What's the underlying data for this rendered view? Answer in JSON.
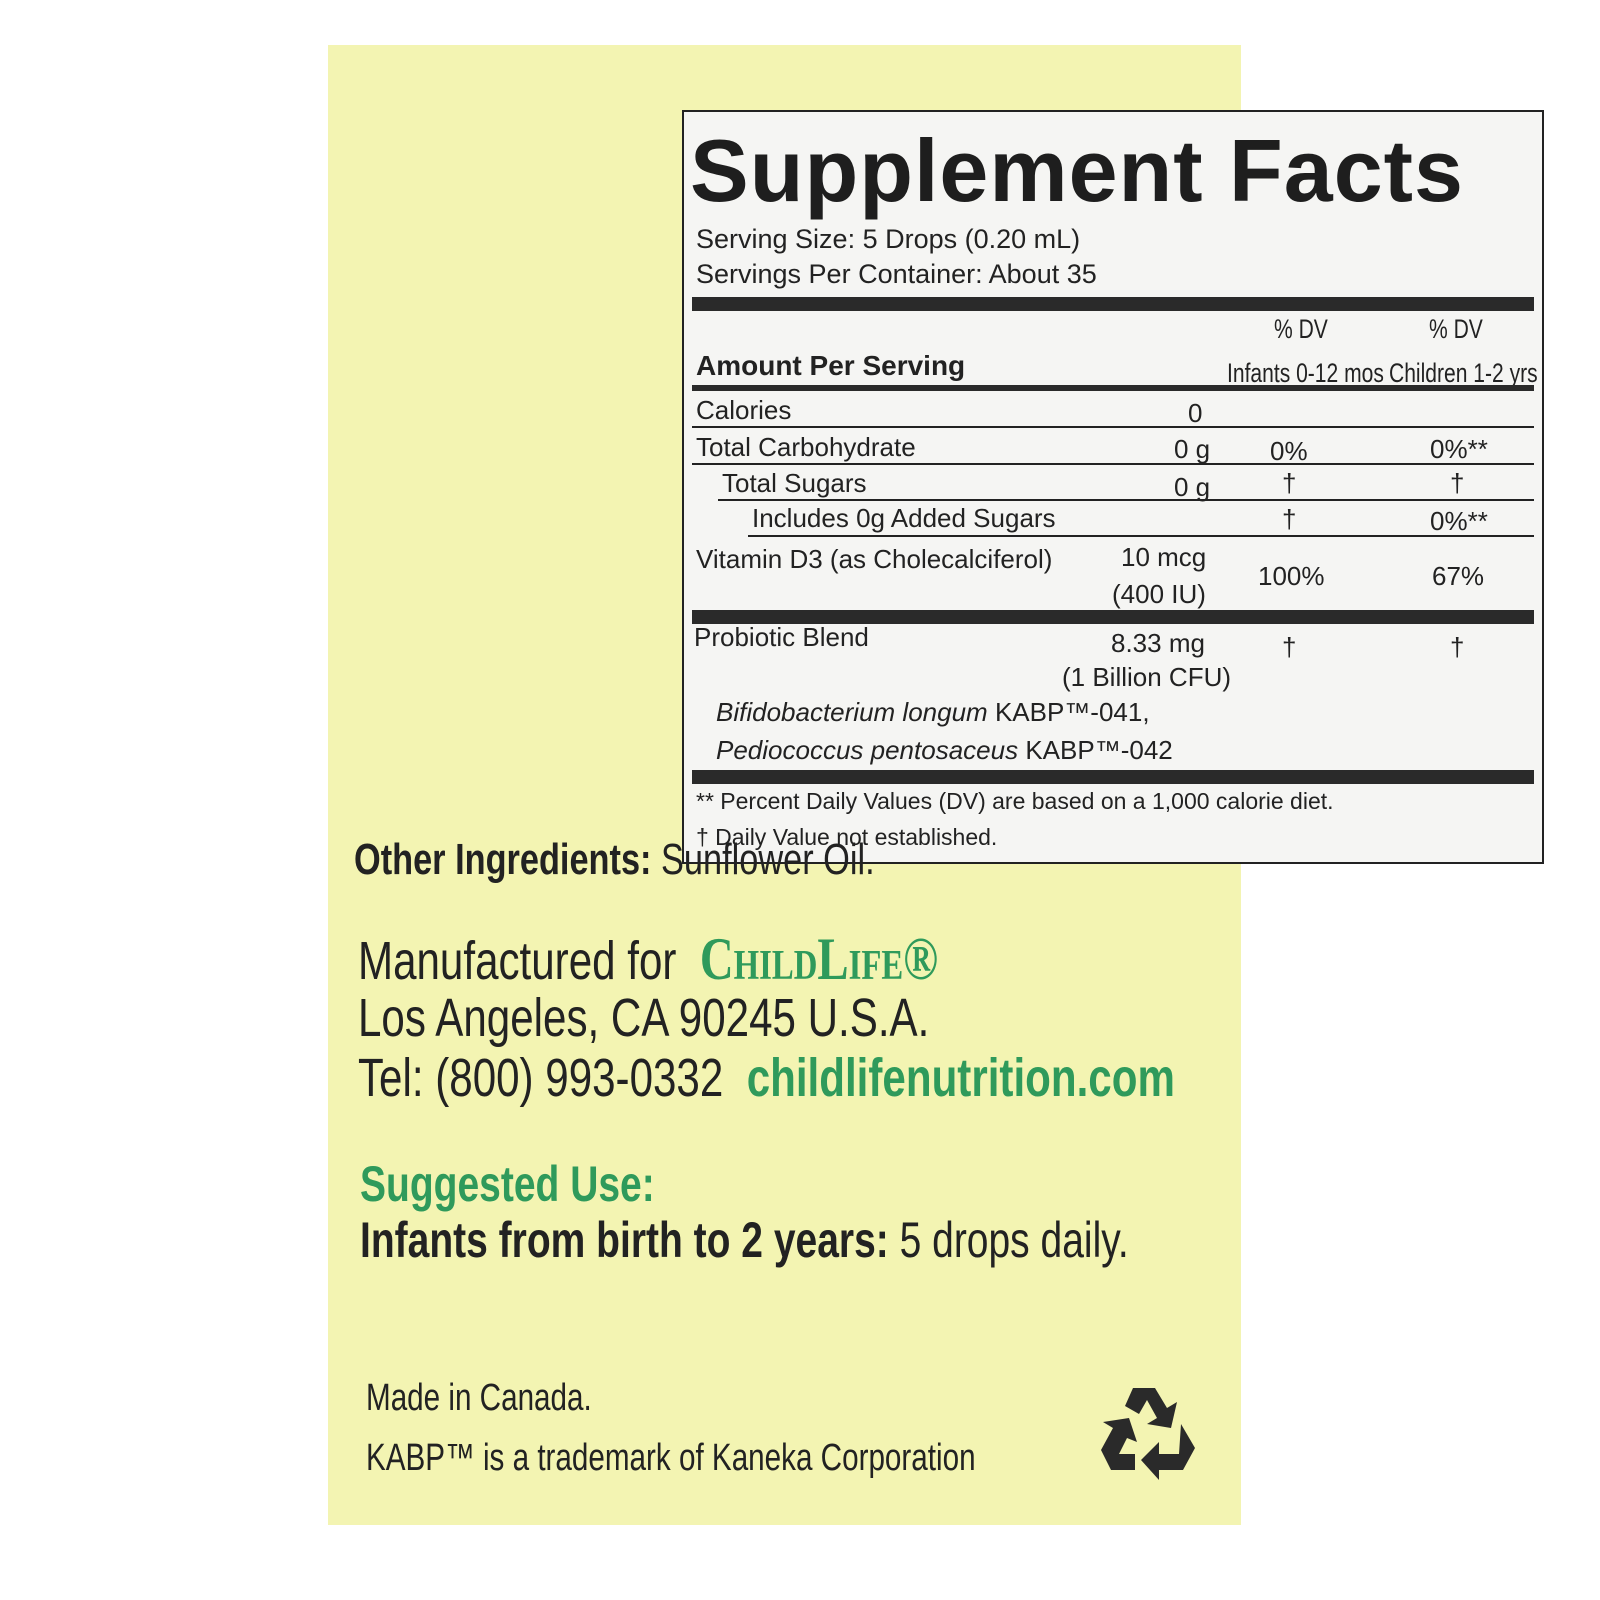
{
  "facts": {
    "title": "Supplement Facts",
    "serving_size": "Serving Size: 5 Drops (0.20 mL)",
    "servings_per_container": "Servings Per Container: About 35",
    "amount_per_serving": "Amount Per Serving",
    "col1_dv": "% DV",
    "col1_label": "Infants 0-12 mos",
    "col2_dv": "% DV",
    "col2_label": "Children 1-2 yrs",
    "rows": [
      {
        "name": "Calories",
        "amount": "0",
        "dv1": "",
        "dv2": ""
      },
      {
        "name": "Total Carbohydrate",
        "amount": "0 g",
        "dv1": "0%",
        "dv2": "0%**"
      },
      {
        "name": "Total Sugars",
        "amount": "0 g",
        "dv1": "†",
        "dv2": "†"
      },
      {
        "name": "Includes 0g  Added Sugars",
        "amount": "",
        "dv1": "†",
        "dv2": "0%**"
      },
      {
        "name": "Vitamin D3 (as Cholecalciferol)",
        "amount": "10 mcg",
        "amount2": "(400 IU)",
        "dv1": "100%",
        "dv2": "67%"
      },
      {
        "name": "Probiotic Blend",
        "amount": "8.33 mg",
        "amount2": "(1 Billion CFU)",
        "dv1": "†",
        "dv2": "†"
      }
    ],
    "strain1_italic": "Bifidobacterium longum",
    "strain1_code": "KABP™-041,",
    "strain2_italic": "Pediococcus pentosaceus",
    "strain2_code": "KABP™-042",
    "footnote1": "** Percent Daily Values (DV) are based on a 1,000 calorie diet.",
    "footnote2": "† Daily Value not established."
  },
  "other_ingredients": {
    "label": "Other Ingredients:",
    "value": "Sunflower Oil."
  },
  "manufacturer": {
    "prefix": "Manufactured for",
    "brand": "ChildLife®",
    "address": "Los Angeles, CA 90245 U.S.A.",
    "tel": "Tel: (800) 993-0332",
    "website": "childlifenutrition.com"
  },
  "suggested_use": {
    "heading": "Suggested Use:",
    "label": "Infants from birth to 2 years:",
    "value": "5 drops daily."
  },
  "footer": {
    "made_in": "Made in Canada.",
    "trademark": "KABP™ is a trademark of Kaneka Corporation"
  },
  "colors": {
    "panel": "#f3f4b2",
    "brand_green": "#2f9a5b"
  },
  "icons": {
    "recycle": "recycle-icon"
  }
}
